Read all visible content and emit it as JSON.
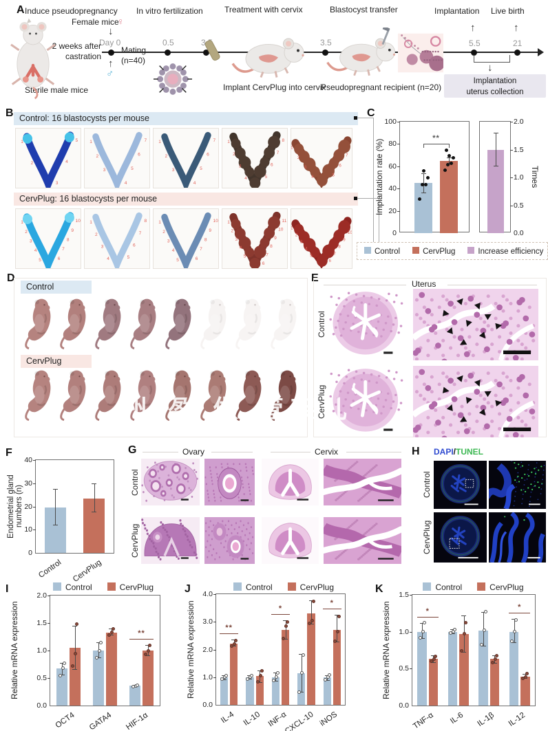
{
  "colors": {
    "control": "#a9c1d5",
    "cervplug": "#c4705c",
    "increase": "#c6a3c9",
    "sig": "#7a4438",
    "header_blue": "#dce9f3",
    "header_pink": "#f9e7e3",
    "dapi_blue": "#2f4bd0",
    "tunel_green": "#3db853"
  },
  "watermark": {
    "text": "州 盈 做 管架儿"
  },
  "figure": {
    "panels": {
      "A": {
        "label": "A",
        "stages": [
          "Induce pseudopregnancy",
          "In vitro fertilization",
          "Treatment with cervix",
          "Blastocyst transfer",
          "Implantation",
          "Live birth"
        ],
        "days": [
          "Day 0",
          "0.5",
          "3.5",
          "3.5",
          "5.5",
          "21"
        ],
        "annotations": {
          "female": "Female mice",
          "female_symbol": "♀",
          "male_symbol": "♂",
          "castration_line1": "2 weeks after",
          "castration_line2": "castration",
          "sterile": "Sterile male mice",
          "mating_line1": "Mating",
          "mating_line2": "(n=40)",
          "implant": "Implant CervPlug into cervix",
          "recipient": "Pseudopregnant recipient (n=20)",
          "collection_line1": "Implantation",
          "collection_line2": "uterus collection"
        }
      },
      "B": {
        "label": "B",
        "rows": [
          {
            "header": "Control: 16 blastocysts per mouse",
            "site_counts": [
              5,
              7,
              7,
              8,
              8
            ]
          },
          {
            "header": "CervPlug: 16 blastocysts per mouse",
            "site_counts": [
              10,
              8,
              10,
              11,
              11
            ]
          }
        ]
      },
      "C": {
        "label": "C"
      },
      "D": {
        "label": "D",
        "groups": [
          {
            "name": "Control",
            "pups_visible": [
              1,
              1,
              1,
              1,
              1,
              0,
              0,
              0
            ]
          },
          {
            "name": "CervPlug",
            "pups_visible": [
              1,
              1,
              1,
              1,
              1,
              1,
              1,
              1
            ]
          }
        ]
      },
      "E": {
        "label": "E",
        "title": "Uterus",
        "rows": [
          "Control",
          "CervPlug"
        ]
      },
      "F": {
        "label": "F"
      },
      "G": {
        "label": "G",
        "columns": [
          "Ovary",
          "Cervix"
        ],
        "rows": [
          "Control",
          "CervPlug"
        ]
      },
      "H": {
        "label": "H",
        "title_parts": [
          "DAPI",
          "/",
          "TUNEL"
        ],
        "rows": [
          "Control",
          "CervPlug"
        ]
      },
      "I": {
        "label": "I"
      },
      "J": {
        "label": "J"
      },
      "K": {
        "label": "K"
      }
    }
  },
  "chart_data": [
    {
      "id": "C",
      "type": "bar-dual-axis",
      "left": {
        "label": "Implantation rate (%)",
        "lim": [
          0,
          100
        ],
        "ticks": [
          "0",
          "20",
          "40",
          "60",
          "80",
          "100"
        ],
        "bars": [
          {
            "name": "Control",
            "value": 45,
            "err": [
              36,
              54
            ],
            "points": [
              31,
              44,
              44,
              50,
              56
            ]
          },
          {
            "name": "CervPlug",
            "value": 65,
            "err": [
              62,
              68
            ],
            "points": [
              57,
              62,
              63,
              68,
              70,
              75
            ]
          }
        ],
        "significance": "**"
      },
      "right": {
        "label": "Times",
        "lim": [
          0,
          2
        ],
        "ticks": [
          "0.0",
          "0.5",
          "1.0",
          "1.5",
          "2.0"
        ],
        "bars": [
          {
            "name": "Increase efficiency",
            "value": 1.5,
            "err": [
              1.2,
              1.8
            ]
          }
        ]
      },
      "legend": [
        "Control",
        "CervPlug",
        "Increase efficiency"
      ],
      "legend_colors": [
        "control",
        "cervplug",
        "increase"
      ]
    },
    {
      "id": "F",
      "type": "bar",
      "ylabel": "Endometrial gland numbers (n)",
      "ylim": [
        0,
        40
      ],
      "yticks": [
        "0",
        "10",
        "20",
        "30",
        "40"
      ],
      "categories": [
        "Control",
        "CervPlug"
      ],
      "series": [
        {
          "name": "single",
          "values": [
            19.5,
            23.5
          ],
          "errors": [
            [
              12,
              27.5
            ],
            [
              17.5,
              30
            ]
          ]
        }
      ],
      "bar_colors": [
        "control",
        "cervplug"
      ]
    },
    {
      "id": "I",
      "type": "grouped-bar",
      "ylabel": "Relative mRNA expression",
      "ylim": [
        0,
        2
      ],
      "yticks": [
        "0.0",
        "0.5",
        "1.0",
        "1.5",
        "2.0"
      ],
      "categories": [
        "OCT4",
        "GATA4",
        "HIF-1α"
      ],
      "series": [
        {
          "name": "Control",
          "values": [
            0.67,
            1.0,
            0.36
          ],
          "errors": [
            [
              0.55,
              0.78
            ],
            [
              0.86,
              1.15
            ],
            [
              0.34,
              0.38
            ]
          ],
          "points": [
            [
              0.55,
              0.68,
              0.77
            ],
            [
              0.87,
              1.0,
              1.15
            ],
            [
              0.35,
              0.36,
              0.37
            ]
          ]
        },
        {
          "name": "CervPlug",
          "values": [
            1.05,
            1.33,
            1.0
          ],
          "errors": [
            [
              0.65,
              1.45
            ],
            [
              1.27,
              1.4
            ],
            [
              0.9,
              1.1
            ]
          ],
          "points": [
            [
              0.72,
              0.95,
              1.48
            ],
            [
              1.28,
              1.33,
              1.4
            ],
            [
              0.93,
              1.0,
              1.09
            ]
          ]
        }
      ],
      "significance": [
        {
          "category": "HIF-1α",
          "label": "**"
        }
      ]
    },
    {
      "id": "J",
      "type": "grouped-bar",
      "ylabel": "Relative mRNA expression",
      "ylim": [
        0,
        4
      ],
      "yticks": [
        "0.0",
        "1.0",
        "2.0",
        "3.0",
        "4.0"
      ],
      "categories": [
        "IL-4",
        "IL-10",
        "INF-α",
        "CXCL-10",
        "iNOS"
      ],
      "series": [
        {
          "name": "Control",
          "values": [
            1.0,
            1.0,
            1.0,
            1.15,
            1.0
          ],
          "errors": [
            [
              0.9,
              1.08
            ],
            [
              0.93,
              1.06
            ],
            [
              0.85,
              1.18
            ],
            [
              0.45,
              1.83
            ],
            [
              0.88,
              1.08
            ]
          ],
          "points": [
            [
              0.92,
              1.0,
              1.05
            ],
            [
              0.94,
              1.0,
              1.05
            ],
            [
              0.87,
              1.0,
              1.15
            ],
            [
              0.47,
              1.15,
              1.8
            ],
            [
              0.9,
              1.0,
              1.07
            ]
          ]
        },
        {
          "name": "CervPlug",
          "values": [
            2.2,
            1.05,
            2.7,
            3.3,
            2.7
          ],
          "errors": [
            [
              2.1,
              2.35
            ],
            [
              0.8,
              1.25
            ],
            [
              2.35,
              3.05
            ],
            [
              2.9,
              3.78
            ],
            [
              2.25,
              3.25
            ]
          ],
          "points": [
            [
              2.12,
              2.2,
              2.32
            ],
            [
              0.82,
              1.05,
              1.22
            ],
            [
              2.4,
              2.85,
              3.0
            ],
            [
              2.95,
              3.05,
              3.75
            ],
            [
              2.3,
              2.65,
              3.2
            ]
          ]
        }
      ],
      "significance": [
        {
          "category": "IL-4",
          "label": "**"
        },
        {
          "category": "INF-α",
          "label": "*"
        },
        {
          "category": "iNOS",
          "label": "*"
        }
      ]
    },
    {
      "id": "K",
      "type": "grouped-bar",
      "ylabel": "Relative mRNA expression",
      "ylim": [
        0,
        1.5
      ],
      "yticks": [
        "0.0",
        "0.5",
        "1.0",
        "1.5"
      ],
      "categories": [
        "TNF-α",
        "IL-6",
        "IL-1β",
        "IL-12"
      ],
      "series": [
        {
          "name": "Control",
          "values": [
            1.0,
            1.0,
            1.02,
            1.0
          ],
          "errors": [
            [
              0.9,
              1.12
            ],
            [
              0.97,
              1.03
            ],
            [
              0.8,
              1.27
            ],
            [
              0.85,
              1.17
            ]
          ],
          "points": [
            [
              0.92,
              1.0,
              1.12
            ],
            [
              0.98,
              1.0,
              1.03
            ],
            [
              0.82,
              1.02,
              1.27
            ],
            [
              0.87,
              1.0,
              1.16
            ]
          ]
        },
        {
          "name": "CervPlug",
          "values": [
            0.63,
            0.97,
            0.63,
            0.39
          ],
          "errors": [
            [
              0.58,
              0.68
            ],
            [
              0.72,
              1.22
            ],
            [
              0.57,
              0.68
            ],
            [
              0.36,
              0.43
            ]
          ],
          "points": [
            [
              0.6,
              0.63,
              0.67
            ],
            [
              0.74,
              0.97,
              1.12
            ],
            [
              0.58,
              0.63,
              0.68
            ],
            [
              0.37,
              0.39,
              0.43
            ]
          ]
        }
      ],
      "significance": [
        {
          "category": "TNF-α",
          "label": "*"
        },
        {
          "category": "IL-12",
          "label": "*"
        }
      ]
    }
  ]
}
